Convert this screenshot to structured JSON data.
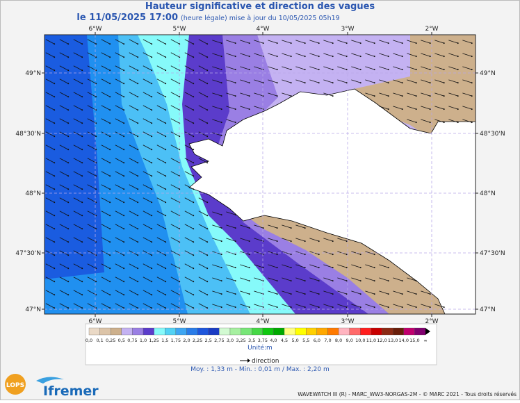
{
  "header": {
    "title": "Hauteur significative et direction des vagues",
    "date": "le 11/05/2025 17:00",
    "note": "(heure légale) mise à jour du 10/05/2025 05h19"
  },
  "map": {
    "lon_labels": [
      "6°W",
      "5°W",
      "4°W",
      "3°W",
      "2°W"
    ],
    "lat_labels": [
      "49°N",
      "48°30'N",
      "48°N",
      "47°30'N",
      "47°N"
    ]
  },
  "legend": {
    "labels": [
      "0,0",
      "0,1",
      "0,25",
      "0,5",
      "0,75",
      "1,0",
      "1,25",
      "1,5",
      "1,75",
      "2,0",
      "2,25",
      "2,5",
      "2,75",
      "3,0",
      "3,25",
      "3,5",
      "3,75",
      "4,0",
      "4,5",
      "5,0",
      "5,5",
      "6,0",
      "7,0",
      "8,0",
      "9,0",
      "10,0",
      "11,0",
      "12,0",
      "13,0",
      "14,0",
      "15,0",
      "∞"
    ],
    "colors": [
      "#ead9c6",
      "#dcc4a8",
      "#cdb08c",
      "#c4b2f2",
      "#9a7fe4",
      "#5b3ccb",
      "#86fafa",
      "#52d2f4",
      "#3ea6f2",
      "#2a7ce8",
      "#1e56dc",
      "#1a3cc4",
      "#d2fad2",
      "#a6f0a0",
      "#78e678",
      "#46d846",
      "#10c810",
      "#00aa00",
      "#ffff80",
      "#ffff00",
      "#ffd000",
      "#ffa800",
      "#ff7a00",
      "#ffb4c0",
      "#ff6a6a",
      "#ff1e1e",
      "#c80000",
      "#8c2a14",
      "#6a1e0a",
      "#c0006e",
      "#80006e"
    ],
    "unit": "Unité:m",
    "direction": "direction"
  },
  "stats": "Moy. : 1,33 m   -   Min. : 0,01 m / Max. : 2,20 m",
  "logos": {
    "lops": "LOPS",
    "ifremer": "Ifremer"
  },
  "footer": "WAVEWATCH III (R) - MARC_WW3-NORGAS-2M - © MARC 2021 - Tous droits réservés"
}
